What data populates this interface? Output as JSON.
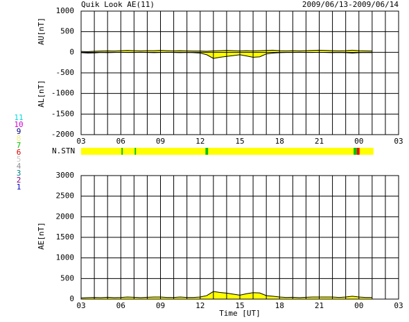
{
  "chart_data": [
    {
      "type": "line",
      "title": "Quik Look AE(11)",
      "subtitle": "2009/06/13-2009/06/14",
      "y_labels": [
        "AU[nT]",
        "AL[nT]"
      ],
      "x": [
        3,
        3.5,
        4,
        4.5,
        5,
        5.5,
        6,
        6.5,
        7,
        7.5,
        8,
        8.5,
        9,
        9.5,
        10,
        10.5,
        11,
        11.5,
        12,
        12.5,
        13,
        13.5,
        14,
        14.5,
        15,
        15.5,
        16,
        16.5,
        17,
        17.5,
        18,
        18.5,
        19,
        19.5,
        20,
        20.5,
        21,
        21.5,
        22,
        22.5,
        23,
        23.5,
        24,
        24.5,
        25
      ],
      "series": [
        {
          "name": "AU",
          "color": "#000000",
          "values": [
            20,
            15,
            25,
            30,
            35,
            30,
            40,
            45,
            40,
            35,
            40,
            40,
            45,
            40,
            35,
            40,
            35,
            30,
            30,
            25,
            35,
            40,
            45,
            40,
            35,
            40,
            35,
            40,
            45,
            50,
            40,
            35,
            40,
            35,
            40,
            45,
            50,
            45,
            40,
            35,
            40,
            50,
            40,
            35,
            30
          ]
        },
        {
          "name": "AL",
          "color": "#000000",
          "values": [
            -10,
            -20,
            -15,
            -5,
            -10,
            -5,
            0,
            -5,
            -5,
            0,
            -5,
            -10,
            -5,
            0,
            -5,
            -10,
            -5,
            -10,
            -20,
            -60,
            -150,
            -120,
            -100,
            -80,
            -60,
            -90,
            -120,
            -110,
            -40,
            -20,
            -10,
            -5,
            -5,
            0,
            -5,
            -5,
            0,
            -5,
            -10,
            -5,
            -10,
            -20,
            -10,
            -5,
            -10
          ]
        }
      ],
      "fill": "#ffff00",
      "xlim": [
        3,
        27
      ],
      "xticks": [
        {
          "value": 3,
          "label": "03"
        },
        {
          "value": 6,
          "label": "06"
        },
        {
          "value": 9,
          "label": "09"
        },
        12,
        15,
        18,
        21,
        {
          "value": 24,
          "label": "00"
        },
        {
          "value": 27,
          "label": "03"
        }
      ],
      "xgrid": [
        3,
        4,
        5,
        6,
        7,
        8,
        9,
        10,
        11,
        12,
        13,
        14,
        15,
        16,
        17,
        18,
        19,
        20,
        21,
        22,
        23,
        24,
        25,
        26,
        27
      ],
      "ylim": [
        -2000,
        1000
      ],
      "yticks": [
        -2000,
        -1500,
        -1000,
        -500,
        0,
        500,
        1000
      ],
      "grid": true
    },
    {
      "type": "area",
      "x_label": "Time [UT]",
      "y_label": "AE[nT]",
      "x": [
        3,
        3.5,
        4,
        4.5,
        5,
        5.5,
        6,
        6.5,
        7,
        7.5,
        8,
        8.5,
        9,
        9.5,
        10,
        10.5,
        11,
        11.5,
        12,
        12.5,
        13,
        13.5,
        14,
        14.5,
        15,
        15.5,
        16,
        16.5,
        17,
        17.5,
        18,
        18.5,
        19,
        19.5,
        20,
        20.5,
        21,
        21.5,
        22,
        22.5,
        23,
        23.5,
        24,
        24.5,
        25
      ],
      "series": [
        {
          "name": "AE",
          "color": "#ffff00",
          "values": [
            30,
            35,
            40,
            35,
            45,
            35,
            40,
            50,
            45,
            35,
            45,
            50,
            50,
            40,
            40,
            50,
            40,
            40,
            50,
            85,
            185,
            160,
            145,
            120,
            95,
            130,
            155,
            150,
            85,
            70,
            50,
            40,
            45,
            35,
            45,
            50,
            50,
            50,
            50,
            40,
            50,
            70,
            50,
            40,
            40
          ]
        }
      ],
      "xlim": [
        3,
        27
      ],
      "xticks": [
        {
          "value": 3,
          "label": "03"
        },
        {
          "value": 6,
          "label": "06"
        },
        {
          "value": 9,
          "label": "09"
        },
        12,
        15,
        18,
        21,
        {
          "value": 24,
          "label": "00"
        },
        {
          "value": 27,
          "label": "03"
        }
      ],
      "xgrid": [
        3,
        4,
        5,
        6,
        7,
        8,
        9,
        10,
        11,
        12,
        13,
        14,
        15,
        16,
        17,
        18,
        19,
        20,
        21,
        22,
        23,
        24,
        25,
        26,
        27
      ],
      "ylim": [
        0,
        3000
      ],
      "yticks": [
        0,
        500,
        1000,
        1500,
        2000,
        2500,
        3000
      ],
      "grid": true
    }
  ],
  "station_bar": {
    "label": "N.STN",
    "segments": [
      {
        "start": 3,
        "end": 25.1,
        "color": "#ffff00"
      },
      {
        "start": 6.05,
        "end": 6.15,
        "color": "#00c000"
      },
      {
        "start": 7.05,
        "end": 7.15,
        "color": "#00c000"
      },
      {
        "start": 12.4,
        "end": 12.6,
        "color": "#00c000"
      },
      {
        "start": 23.6,
        "end": 23.85,
        "color": "#00c000"
      },
      {
        "start": 23.85,
        "end": 24.05,
        "color": "#ff0000"
      }
    ]
  },
  "legend": [
    {
      "label": "11",
      "color": "#00d8d8"
    },
    {
      "label": "10",
      "color": "#d800d8"
    },
    {
      "label": "9",
      "color": "#000080"
    },
    {
      "label": "8",
      "color": "#f0f080"
    },
    {
      "label": "7",
      "color": "#00c000"
    },
    {
      "label": "6",
      "color": "#e00000"
    },
    {
      "label": "5",
      "color": "#c8c8c8"
    },
    {
      "label": "4",
      "color": "#909090"
    },
    {
      "label": "3",
      "color": "#008080"
    },
    {
      "label": "2",
      "color": "#800080"
    },
    {
      "label": "1",
      "color": "#0000c0"
    }
  ]
}
